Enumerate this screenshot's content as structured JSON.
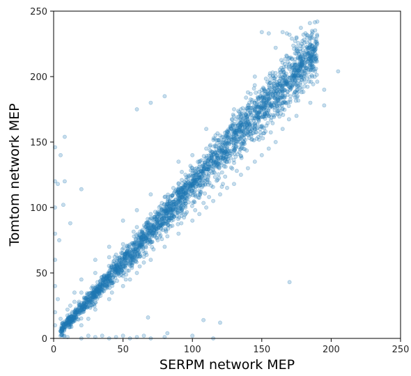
{
  "chart_data": {
    "type": "scatter",
    "title": "",
    "xlabel": "SERPM network MEP",
    "ylabel": "Tomtom network MEP",
    "xlim": [
      0,
      250
    ],
    "ylim": [
      0,
      250
    ],
    "xticks": [
      "0",
      "50",
      "100",
      "150",
      "200",
      "250"
    ],
    "yticks": [
      "0",
      "50",
      "100",
      "150",
      "200",
      "250"
    ],
    "grid": false,
    "legend": "none",
    "point_color": "#1f77b4",
    "point_opacity": 0.25,
    "trend": {
      "slope": 1.17,
      "intercept": 0,
      "x_range": [
        5,
        190
      ]
    },
    "series": [
      {
        "points": [
          [
            10,
            14
          ],
          [
            12,
            12
          ],
          [
            15,
            18
          ],
          [
            18,
            20
          ],
          [
            20,
            22
          ],
          [
            22,
            24
          ],
          [
            25,
            30
          ],
          [
            28,
            32
          ],
          [
            30,
            36
          ],
          [
            32,
            35
          ],
          [
            35,
            40
          ],
          [
            38,
            44
          ],
          [
            40,
            46
          ],
          [
            42,
            48
          ],
          [
            45,
            52
          ],
          [
            48,
            55
          ],
          [
            50,
            58
          ],
          [
            52,
            61
          ],
          [
            55,
            64
          ],
          [
            58,
            68
          ],
          [
            60,
            70
          ],
          [
            62,
            73
          ],
          [
            65,
            76
          ],
          [
            68,
            79
          ],
          [
            70,
            82
          ],
          [
            72,
            85
          ],
          [
            75,
            88
          ],
          [
            78,
            91
          ],
          [
            80,
            94
          ],
          [
            82,
            96
          ],
          [
            85,
            99
          ],
          [
            88,
            103
          ],
          [
            90,
            105
          ],
          [
            92,
            108
          ],
          [
            95,
            111
          ],
          [
            98,
            115
          ],
          [
            100,
            117
          ],
          [
            102,
            120
          ],
          [
            105,
            123
          ],
          [
            108,
            126
          ],
          [
            110,
            129
          ],
          [
            112,
            131
          ],
          [
            115,
            134
          ],
          [
            118,
            138
          ],
          [
            120,
            140
          ],
          [
            122,
            143
          ],
          [
            125,
            146
          ],
          [
            128,
            150
          ],
          [
            130,
            152
          ],
          [
            132,
            154
          ],
          [
            135,
            158
          ],
          [
            138,
            161
          ],
          [
            140,
            164
          ],
          [
            142,
            166
          ],
          [
            145,
            170
          ],
          [
            148,
            173
          ],
          [
            150,
            176
          ],
          [
            152,
            178
          ],
          [
            155,
            181
          ],
          [
            158,
            185
          ],
          [
            160,
            187
          ],
          [
            162,
            190
          ],
          [
            165,
            193
          ],
          [
            168,
            196
          ],
          [
            170,
            199
          ],
          [
            172,
            201
          ],
          [
            175,
            205
          ],
          [
            178,
            208
          ],
          [
            180,
            211
          ],
          [
            182,
            213
          ],
          [
            185,
            216
          ],
          [
            188,
            220
          ],
          [
            150,
            234
          ],
          [
            155,
            233
          ],
          [
            165,
            234
          ],
          [
            170,
            232
          ],
          [
            175,
            230
          ],
          [
            190,
            242
          ],
          [
            185,
            224
          ],
          [
            180,
            232
          ],
          [
            205,
            204
          ],
          [
            195,
            178
          ],
          [
            168,
            233
          ],
          [
            190,
            225
          ],
          [
            176,
            214
          ],
          [
            160,
            222
          ],
          [
            145,
            200
          ],
          [
            140,
            188
          ],
          [
            135,
            175
          ],
          [
            128,
            160
          ],
          [
            120,
            155
          ],
          [
            110,
            145
          ],
          [
            100,
            130
          ],
          [
            90,
            118
          ],
          [
            80,
            108
          ],
          [
            70,
            95
          ],
          [
            60,
            85
          ],
          [
            50,
            72
          ],
          [
            40,
            62
          ],
          [
            30,
            50
          ],
          [
            20,
            35
          ],
          [
            15,
            28
          ],
          [
            10,
            22
          ],
          [
            5,
            15
          ],
          [
            110,
            100
          ],
          [
            120,
            110
          ],
          [
            130,
            118
          ],
          [
            140,
            130
          ],
          [
            150,
            140
          ],
          [
            160,
            150
          ],
          [
            100,
            90
          ],
          [
            90,
            80
          ],
          [
            80,
            70
          ],
          [
            70,
            60
          ],
          [
            60,
            50
          ],
          [
            50,
            40
          ],
          [
            40,
            30
          ],
          [
            30,
            22
          ],
          [
            25,
            15
          ],
          [
            20,
            10
          ],
          [
            80,
            185
          ],
          [
            70,
            180
          ],
          [
            60,
            175
          ],
          [
            20,
            114
          ],
          [
            8,
            154
          ],
          [
            5,
            140
          ],
          [
            7,
            102
          ],
          [
            8,
            120
          ],
          [
            12,
            88
          ],
          [
            3,
            30
          ],
          [
            1,
            146
          ],
          [
            1,
            120
          ],
          [
            1,
            100
          ],
          [
            1,
            80
          ],
          [
            1,
            60
          ],
          [
            1,
            40
          ],
          [
            1,
            20
          ],
          [
            1,
            10
          ],
          [
            3,
            118
          ],
          [
            4,
            75
          ],
          [
            5,
            2
          ],
          [
            10,
            1
          ],
          [
            20,
            0
          ],
          [
            30,
            1
          ],
          [
            40,
            0
          ],
          [
            50,
            2
          ],
          [
            60,
            1
          ],
          [
            70,
            0
          ],
          [
            80,
            1
          ],
          [
            100,
            2
          ],
          [
            115,
            0
          ],
          [
            35,
            2
          ],
          [
            45,
            1
          ],
          [
            55,
            0
          ],
          [
            65,
            2
          ],
          [
            25,
            2
          ],
          [
            170,
            43
          ],
          [
            120,
            12
          ],
          [
            82,
            4
          ],
          [
            68,
            16
          ],
          [
            108,
            14
          ],
          [
            45,
            64
          ],
          [
            55,
            45
          ],
          [
            65,
            58
          ],
          [
            85,
            90
          ],
          [
            95,
            100
          ],
          [
            105,
            110
          ],
          [
            125,
            135
          ],
          [
            135,
            145
          ],
          [
            145,
            160
          ],
          [
            155,
            170
          ],
          [
            165,
            180
          ],
          [
            175,
            195
          ],
          [
            185,
            205
          ],
          [
            60,
            98
          ],
          [
            75,
            75
          ],
          [
            100,
            140
          ],
          [
            140,
            170
          ],
          [
            160,
            200
          ],
          [
            150,
            190
          ],
          [
            130,
            175
          ],
          [
            110,
            160
          ],
          [
            90,
            135
          ],
          [
            70,
            110
          ],
          [
            50,
            90
          ],
          [
            40,
            70
          ],
          [
            30,
            60
          ],
          [
            20,
            45
          ],
          [
            15,
            35
          ],
          [
            12,
            25
          ],
          [
            95,
            125
          ],
          [
            105,
            135
          ],
          [
            115,
            140
          ],
          [
            125,
            155
          ],
          [
            135,
            165
          ],
          [
            145,
            180
          ],
          [
            155,
            190
          ],
          [
            165,
            205
          ],
          [
            175,
            220
          ],
          [
            185,
            230
          ],
          [
            105,
            95
          ],
          [
            115,
            105
          ],
          [
            125,
            115
          ],
          [
            135,
            125
          ],
          [
            145,
            135
          ],
          [
            155,
            145
          ],
          [
            165,
            160
          ],
          [
            175,
            170
          ],
          [
            185,
            180
          ],
          [
            195,
            190
          ],
          [
            42,
            35
          ],
          [
            52,
            45
          ],
          [
            62,
            55
          ],
          [
            72,
            68
          ],
          [
            82,
            78
          ],
          [
            92,
            88
          ],
          [
            102,
            98
          ],
          [
            112,
            108
          ],
          [
            122,
            118
          ],
          [
            132,
            128
          ]
        ]
      }
    ]
  }
}
